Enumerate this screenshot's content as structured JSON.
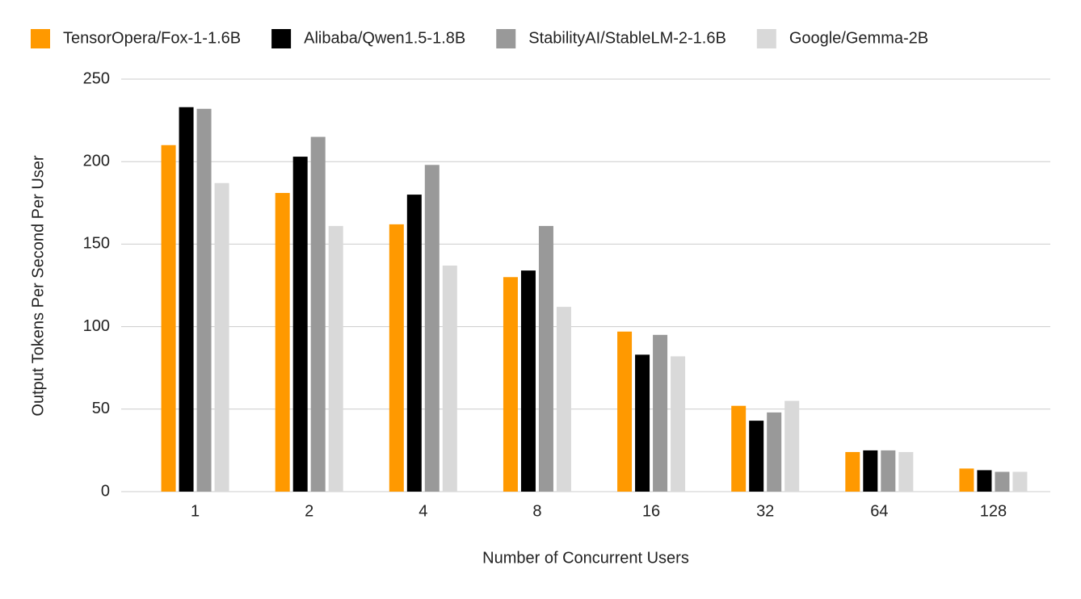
{
  "chart_data": {
    "type": "bar",
    "x_label": "Number of Concurrent Users",
    "y_label": "Output Tokens Per Second Per User",
    "categories": [
      "1",
      "2",
      "4",
      "8",
      "16",
      "32",
      "64",
      "128"
    ],
    "series": [
      {
        "name": "TensorOpera/Fox-1-1.6B",
        "color": "#ff9900",
        "values": [
          210,
          181,
          162,
          130,
          97,
          52,
          24,
          14
        ]
      },
      {
        "name": "Alibaba/Qwen1.5-1.8B",
        "color": "#000000",
        "values": [
          233,
          203,
          180,
          134,
          83,
          43,
          25,
          13
        ]
      },
      {
        "name": "StabilityAI/StableLM-2-1.6B",
        "color": "#999999",
        "values": [
          232,
          215,
          198,
          161,
          95,
          48,
          25,
          12
        ]
      },
      {
        "name": "Google/Gemma-2B",
        "color": "#d9d9d9",
        "values": [
          187,
          161,
          137,
          112,
          82,
          55,
          24,
          12
        ]
      }
    ],
    "ylim": [
      0,
      250
    ],
    "yticks": [
      0,
      50,
      100,
      150,
      200,
      250
    ],
    "grid": true,
    "legend": "top"
  }
}
